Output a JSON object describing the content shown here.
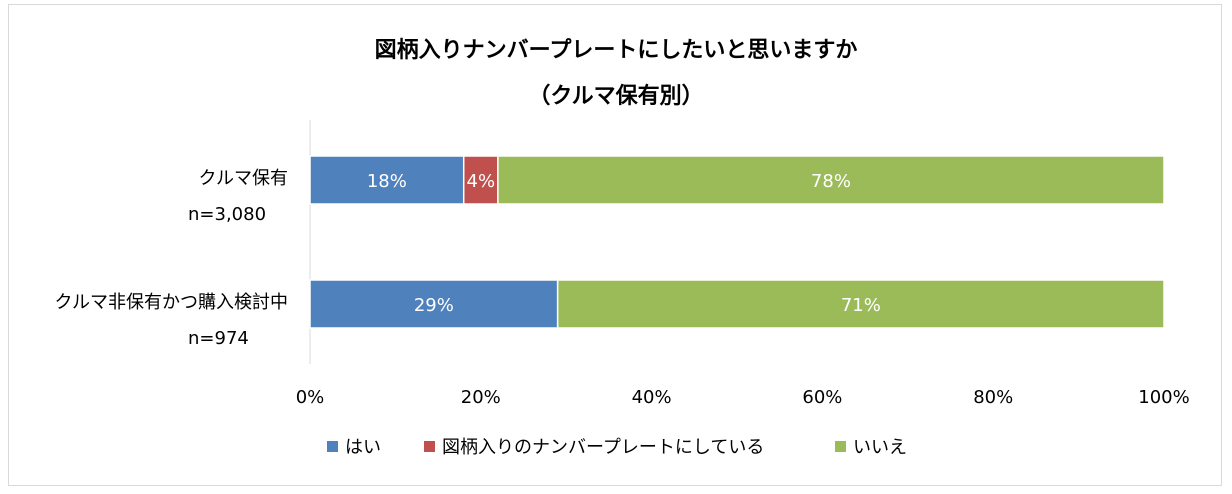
{
  "chart_data": {
    "type": "bar",
    "orientation": "horizontal",
    "stacked": "percent",
    "title": "図柄入りナンバープレートにしたいと思いますか",
    "subtitle": "（クルマ保有別）",
    "categories": [
      {
        "label": "クルマ保有",
        "n": "n=3,080"
      },
      {
        "label": "クルマ非保有かつ購入検討中",
        "n": "n=974"
      }
    ],
    "series": [
      {
        "name": "はい",
        "color": "#4f81bd",
        "values": [
          18,
          29
        ],
        "labels": [
          "18%",
          "29%"
        ]
      },
      {
        "name": "図柄入りのナンバープレートにしている",
        "color": "#c0504d",
        "values": [
          4,
          0
        ],
        "labels": [
          "4%",
          ""
        ]
      },
      {
        "name": "いいえ",
        "color": "#9bbb59",
        "values": [
          78,
          71
        ],
        "labels": [
          "78%",
          "71%"
        ]
      }
    ],
    "xlim": [
      0,
      100
    ],
    "xticks": [
      "0%",
      "20%",
      "40%",
      "60%",
      "80%",
      "100%"
    ],
    "legend_position": "bottom",
    "grid": false
  }
}
